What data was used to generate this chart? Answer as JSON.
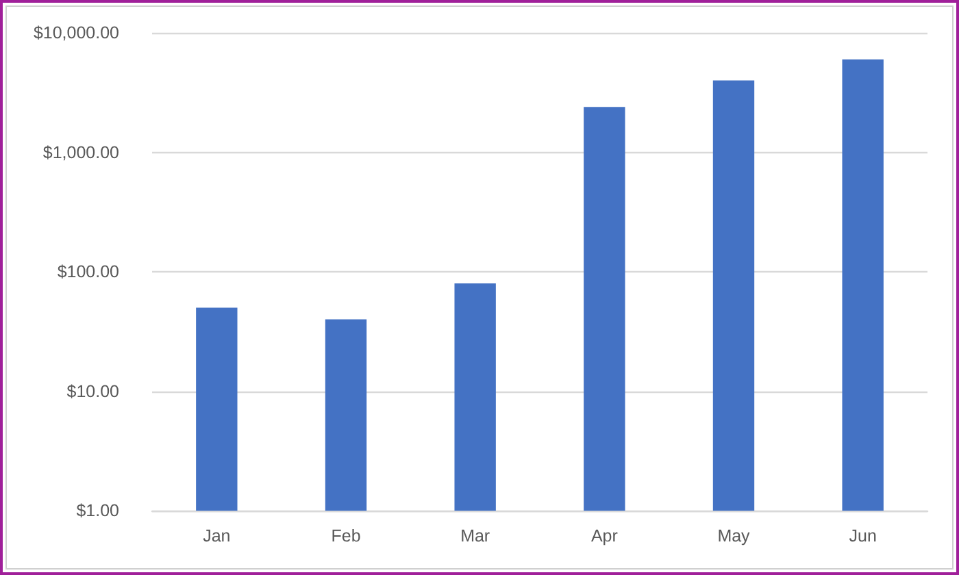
{
  "chart_data": {
    "type": "bar",
    "categories": [
      "Jan",
      "Feb",
      "Mar",
      "Apr",
      "May",
      "Jun"
    ],
    "values": [
      50,
      40,
      80,
      2400,
      4000,
      6000
    ],
    "color": "#4472c4",
    "log": "y",
    "ylim": [
      1,
      10000
    ],
    "yticks": [
      {
        "value": 1,
        "label": "$1.00"
      },
      {
        "value": 10,
        "label": "$10.00"
      },
      {
        "value": 100,
        "label": "$100.00"
      },
      {
        "value": 1000,
        "label": "$1,000.00"
      },
      {
        "value": 10000,
        "label": "$10,000.00"
      }
    ],
    "grid": "y"
  }
}
